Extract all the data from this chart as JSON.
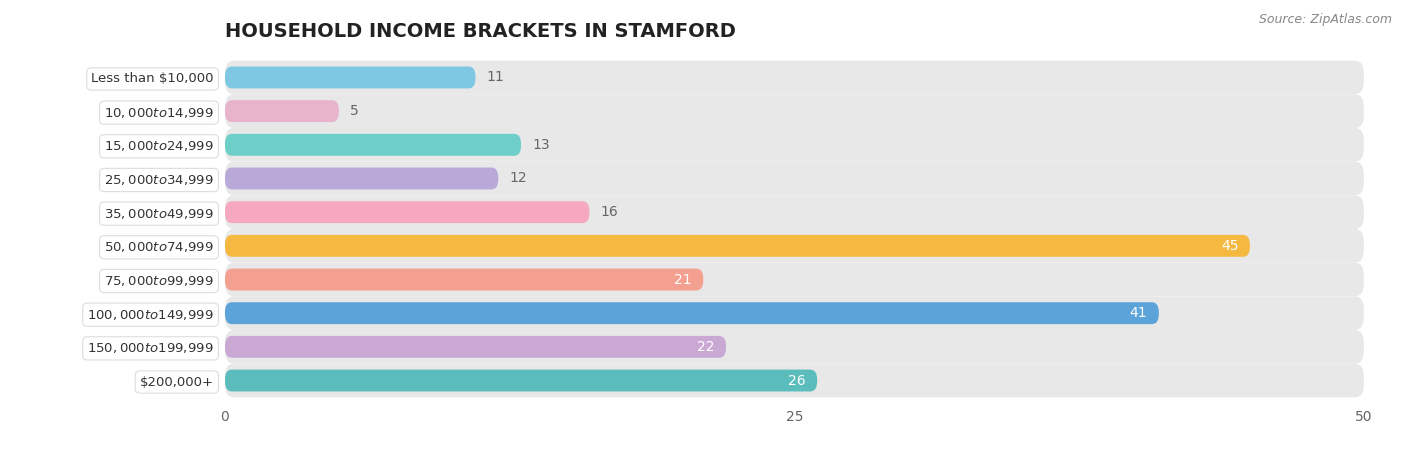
{
  "title": "HOUSEHOLD INCOME BRACKETS IN STAMFORD",
  "source": "Source: ZipAtlas.com",
  "categories": [
    "Less than $10,000",
    "$10,000 to $14,999",
    "$15,000 to $24,999",
    "$25,000 to $34,999",
    "$35,000 to $49,999",
    "$50,000 to $74,999",
    "$75,000 to $99,999",
    "$100,000 to $149,999",
    "$150,000 to $199,999",
    "$200,000+"
  ],
  "values": [
    11,
    5,
    13,
    12,
    16,
    45,
    21,
    41,
    22,
    26
  ],
  "bar_colors": [
    "#7ec8e3",
    "#e8b4cb",
    "#6ecec8",
    "#b8a9d9",
    "#f5a8be",
    "#f5b942",
    "#f4a090",
    "#5ba3d9",
    "#c9a8d4",
    "#5bbcbc"
  ],
  "bar_bg_color": "#e8e8e8",
  "xlim": [
    0,
    50
  ],
  "xticks": [
    0,
    25,
    50
  ],
  "label_color_inside": "#ffffff",
  "label_color_outside": "#666666",
  "title_fontsize": 14,
  "source_fontsize": 9,
  "tick_fontsize": 10,
  "background_color": "#ffffff",
  "plot_bg_color": "#f2f2f2",
  "bar_height": 0.65,
  "value_threshold_inside": 20,
  "row_bg_colors": [
    "#ffffff",
    "#f7f7f7"
  ]
}
